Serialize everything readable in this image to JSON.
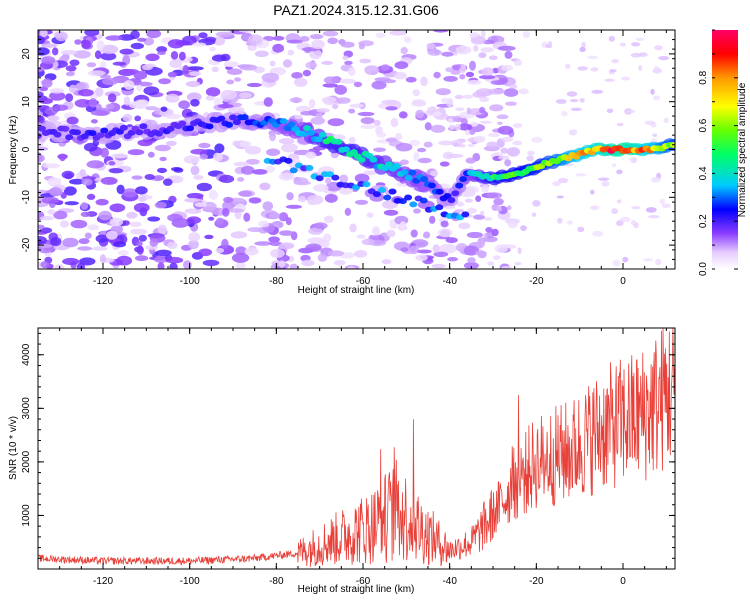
{
  "title": "PAZ1.2024.315.12.31.G06",
  "chart_data": [
    {
      "type": "heatmap",
      "xlabel": "Height of straight line (km)",
      "ylabel": "Frequency (Hz)",
      "xlim": [
        -135,
        12
      ],
      "ylim": [
        -25,
        25
      ],
      "xticks": [
        -120,
        -100,
        -80,
        -60,
        -40,
        -20,
        0
      ],
      "yticks": [
        -20,
        -10,
        0,
        10,
        20
      ],
      "colorbar": {
        "label": "Normalized spectral amplitude",
        "range": [
          0,
          1
        ],
        "ticks": [
          "0.0",
          "0.2",
          "0.4",
          "0.6",
          "0.8"
        ],
        "colors": [
          "#ffffff",
          "#e6ccff",
          "#8a3bff",
          "#5a00d8",
          "#0000ff",
          "#00ccff",
          "#00ff66",
          "#66ff00",
          "#ffff00",
          "#ff9900",
          "#ff0000",
          "#ff0088"
        ]
      },
      "ridge": [
        {
          "x": -134,
          "y": 3.5,
          "a": 0.2
        },
        {
          "x": -128,
          "y": 3.5,
          "a": 0.2
        },
        {
          "x": -120,
          "y": 3.2,
          "a": 0.22
        },
        {
          "x": -112,
          "y": 4,
          "a": 0.2
        },
        {
          "x": -104,
          "y": 4.5,
          "a": 0.22
        },
        {
          "x": -96,
          "y": 5.5,
          "a": 0.22
        },
        {
          "x": -88,
          "y": 6,
          "a": 0.25
        },
        {
          "x": -80,
          "y": 5.5,
          "a": 0.3
        },
        {
          "x": -74,
          "y": 4,
          "a": 0.35
        },
        {
          "x": -68,
          "y": 2,
          "a": 0.45
        },
        {
          "x": -62,
          "y": -1,
          "a": 0.45
        },
        {
          "x": -56,
          "y": -3,
          "a": 0.4
        },
        {
          "x": -50,
          "y": -5,
          "a": 0.35
        },
        {
          "x": -44,
          "y": -8,
          "a": 0.3
        },
        {
          "x": -40,
          "y": -11,
          "a": 0.22
        },
        {
          "x": -36,
          "y": -5,
          "a": 0.3
        },
        {
          "x": -30,
          "y": -6,
          "a": 0.5
        },
        {
          "x": -24,
          "y": -5,
          "a": 0.55
        },
        {
          "x": -18,
          "y": -3,
          "a": 0.6
        },
        {
          "x": -12,
          "y": -1.5,
          "a": 0.75
        },
        {
          "x": -6,
          "y": 0,
          "a": 0.85
        },
        {
          "x": 0,
          "y": 0,
          "a": 0.95
        },
        {
          "x": 6,
          "y": 0,
          "a": 0.8
        },
        {
          "x": 12,
          "y": 1,
          "a": 0.6
        }
      ]
    },
    {
      "type": "line",
      "xlabel": "Height of straight line (km)",
      "ylabel": "SNR (10 * v/v)",
      "xlim": [
        -135,
        12
      ],
      "ylim": [
        0,
        4500
      ],
      "xticks": [
        -120,
        -100,
        -80,
        -60,
        -40,
        -20,
        0
      ],
      "yticks": [
        1000,
        2000,
        3000,
        4000
      ],
      "color": "#e8413a",
      "trend": [
        {
          "x": -135,
          "y": 200
        },
        {
          "x": -120,
          "y": 150
        },
        {
          "x": -100,
          "y": 150
        },
        {
          "x": -85,
          "y": 200
        },
        {
          "x": -75,
          "y": 300
        },
        {
          "x": -65,
          "y": 600
        },
        {
          "x": -58,
          "y": 800
        },
        {
          "x": -52,
          "y": 1100
        },
        {
          "x": -46,
          "y": 700
        },
        {
          "x": -40,
          "y": 350
        },
        {
          "x": -35,
          "y": 500
        },
        {
          "x": -30,
          "y": 1000
        },
        {
          "x": -25,
          "y": 1600
        },
        {
          "x": -20,
          "y": 2000
        },
        {
          "x": -12,
          "y": 2200
        },
        {
          "x": -5,
          "y": 2600
        },
        {
          "x": 5,
          "y": 2900
        },
        {
          "x": 12,
          "y": 3400
        }
      ]
    }
  ]
}
